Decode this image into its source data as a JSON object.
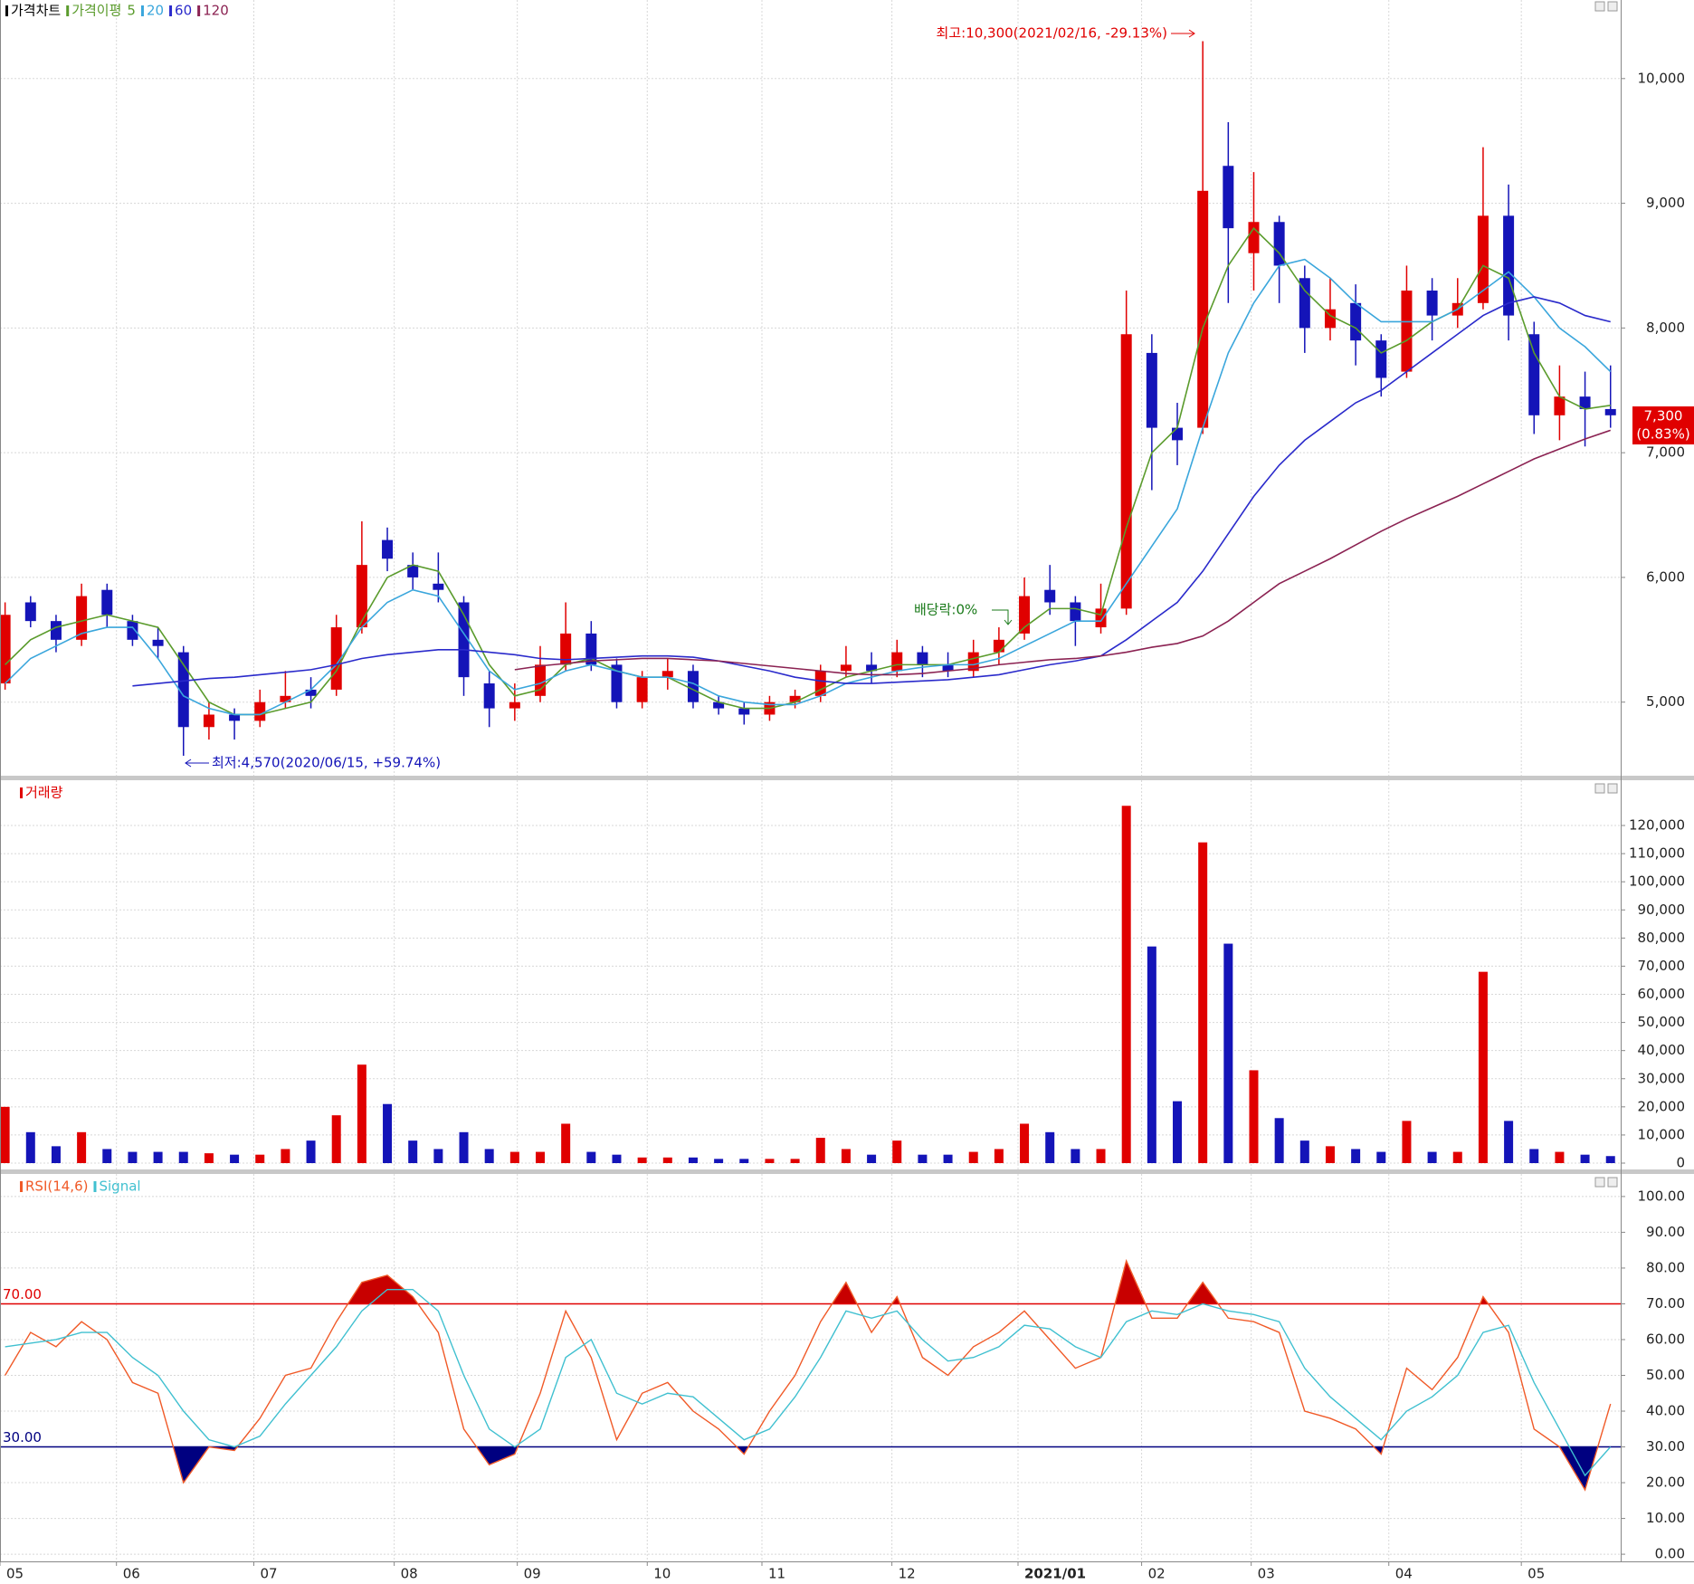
{
  "chart_data": [
    {
      "type": "candlestick",
      "title": "가격차트",
      "ma_label": "가격이평",
      "up_color": "#e00000",
      "down_color": "#1414b8",
      "open": [
        5150,
        5800,
        5650,
        5500,
        5900,
        5650,
        5500,
        5400,
        4800,
        4900,
        4850,
        5000,
        5100,
        5100,
        5600,
        6300,
        6100,
        5950,
        5800,
        5150,
        4950,
        5050,
        5300,
        5550,
        5300,
        5000,
        5200,
        5250,
        5000,
        4950,
        4900,
        5000,
        5050,
        5250,
        5300,
        5250,
        5400,
        5300,
        5250,
        5400,
        5550,
        5900,
        5800,
        5600,
        5750,
        7800,
        7200,
        7200,
        9300,
        8600,
        8850,
        8400,
        8000,
        8200,
        7900,
        7650,
        8300,
        8100,
        8200,
        8900,
        7950,
        7300,
        7450,
        7350
      ],
      "high": [
        5800,
        5850,
        5700,
        5950,
        5950,
        5700,
        5600,
        5450,
        5000,
        4950,
        5100,
        5250,
        5200,
        5700,
        6450,
        6400,
        6200,
        6200,
        5850,
        5250,
        5150,
        5450,
        5800,
        5650,
        5350,
        5250,
        5350,
        5300,
        5050,
        5000,
        5050,
        5100,
        5300,
        5450,
        5400,
        5500,
        5450,
        5400,
        5500,
        5600,
        6000,
        6100,
        5850,
        5950,
        8300,
        7950,
        7400,
        10300,
        9650,
        9250,
        8900,
        8500,
        8400,
        8350,
        7950,
        8500,
        8400,
        8400,
        9450,
        9150,
        8050,
        7700,
        7650,
        7700
      ],
      "low": [
        5100,
        5600,
        5400,
        5450,
        5600,
        5450,
        5350,
        4570,
        4700,
        4700,
        4800,
        4950,
        4950,
        5050,
        5550,
        6050,
        5900,
        5800,
        5050,
        4800,
        4850,
        5000,
        5250,
        5250,
        4950,
        4950,
        5100,
        4950,
        4900,
        4820,
        4850,
        4950,
        5000,
        5200,
        5150,
        5200,
        5200,
        5200,
        5200,
        5300,
        5500,
        5700,
        5450,
        5550,
        5700,
        6700,
        6900,
        7150,
        8200,
        8300,
        8200,
        7800,
        7900,
        7700,
        7450,
        7600,
        7900,
        8000,
        8150,
        7900,
        7150,
        7100,
        7050,
        7200
      ],
      "close": [
        5700,
        5650,
        5500,
        5850,
        5700,
        5500,
        5450,
        4800,
        4900,
        4850,
        5000,
        5050,
        5050,
        5600,
        6100,
        6150,
        6000,
        5900,
        5200,
        4950,
        5000,
        5300,
        5550,
        5300,
        5000,
        5200,
        5250,
        5000,
        4950,
        4900,
        5000,
        5050,
        5250,
        5300,
        5250,
        5400,
        5300,
        5250,
        5400,
        5500,
        5850,
        5800,
        5650,
        5750,
        7950,
        7200,
        7100,
        9100,
        8800,
        8850,
        8500,
        8000,
        8150,
        7900,
        7600,
        8300,
        8100,
        8200,
        8900,
        8100,
        7300,
        7450,
        7350,
        7300
      ],
      "series": [
        {
          "name": "5",
          "color": "#5a9b2c",
          "values": [
            5300,
            5500,
            5600,
            5650,
            5700,
            5650,
            5600,
            5300,
            5000,
            4900,
            4900,
            4950,
            5000,
            5250,
            5650,
            6000,
            6100,
            6050,
            5700,
            5300,
            5050,
            5100,
            5300,
            5350,
            5250,
            5200,
            5200,
            5100,
            5000,
            4950,
            4950,
            5000,
            5100,
            5200,
            5250,
            5300,
            5300,
            5300,
            5350,
            5400,
            5600,
            5750,
            5750,
            5700,
            6400,
            7000,
            7200,
            8000,
            8500,
            8800,
            8600,
            8300,
            8100,
            8000,
            7800,
            7900,
            8050,
            8150,
            8500,
            8400,
            7800,
            7450,
            7350,
            7380
          ]
        },
        {
          "name": "20",
          "color": "#3aa6dc",
          "values": [
            5150,
            5350,
            5450,
            5550,
            5600,
            5600,
            5350,
            5050,
            4950,
            4900,
            4900,
            5000,
            5100,
            5300,
            5600,
            5800,
            5900,
            5850,
            5550,
            5250,
            5100,
            5150,
            5250,
            5300,
            5250,
            5200,
            5200,
            5150,
            5050,
            5000,
            4980,
            4980,
            5050,
            5150,
            5200,
            5250,
            5280,
            5300,
            5300,
            5350,
            5450,
            5550,
            5650,
            5650,
            5950,
            6250,
            6550,
            7200,
            7800,
            8200,
            8500,
            8550,
            8400,
            8200,
            8050,
            8050,
            8050,
            8150,
            8300,
            8450,
            8250,
            8000,
            7850,
            7650
          ]
        },
        {
          "name": "60",
          "color": "#2a2acb",
          "values": [
            null,
            null,
            null,
            null,
            null,
            5130,
            5150,
            5170,
            5190,
            5200,
            5220,
            5240,
            5260,
            5300,
            5350,
            5380,
            5400,
            5420,
            5420,
            5400,
            5380,
            5350,
            5340,
            5350,
            5360,
            5370,
            5370,
            5360,
            5330,
            5290,
            5250,
            5200,
            5170,
            5150,
            5150,
            5160,
            5170,
            5180,
            5200,
            5220,
            5260,
            5300,
            5330,
            5370,
            5500,
            5650,
            5800,
            6050,
            6350,
            6650,
            6900,
            7100,
            7250,
            7400,
            7500,
            7650,
            7800,
            7950,
            8100,
            8200,
            8250,
            8200,
            8100,
            8050
          ]
        },
        {
          "name": "120",
          "color": "#8b2252",
          "values": [
            null,
            null,
            null,
            null,
            null,
            null,
            null,
            null,
            null,
            null,
            null,
            null,
            null,
            null,
            null,
            null,
            null,
            null,
            null,
            null,
            5260,
            5290,
            5310,
            5330,
            5340,
            5350,
            5350,
            5340,
            5330,
            5310,
            5290,
            5270,
            5250,
            5230,
            5220,
            5220,
            5230,
            5250,
            5270,
            5300,
            5320,
            5340,
            5350,
            5370,
            5400,
            5440,
            5470,
            5530,
            5650,
            5800,
            5950,
            6050,
            6150,
            6260,
            6370,
            6470,
            6560,
            6650,
            6750,
            6850,
            6950,
            7030,
            7110,
            7180
          ]
        }
      ],
      "xlim": [
        -0.2,
        63.4
      ],
      "ylim": [
        4410,
        10630
      ],
      "yticks": [
        {
          "value": 5000,
          "label": "5,000"
        },
        {
          "value": 6000,
          "label": "6,000"
        },
        {
          "value": 7000,
          "label": "7,000"
        },
        {
          "value": 8000,
          "label": "8,000"
        },
        {
          "value": 9000,
          "label": "9,000"
        },
        {
          "value": 10000,
          "label": "10,000"
        }
      ],
      "grid": true,
      "annotations": {
        "high": "최고:10,300(2021/02/16, -29.13%)",
        "low": "최저:4,570(2020/06/15, +59.74%)",
        "ex_dividend": "배당락:0%"
      },
      "last_label": "7,300",
      "last_change": "(0.83%)"
    },
    {
      "type": "bar",
      "title": "거래량",
      "values": [
        20000,
        11000,
        6000,
        11000,
        5000,
        4000,
        4000,
        4000,
        3500,
        3000,
        3000,
        5000,
        8000,
        17000,
        35000,
        21000,
        8000,
        5000,
        11000,
        5000,
        4000,
        4000,
        14000,
        4000,
        3000,
        2000,
        2000,
        2000,
        1500,
        1500,
        1500,
        1500,
        9000,
        5000,
        3000,
        8000,
        3000,
        3000,
        4000,
        5000,
        14000,
        11000,
        5000,
        5000,
        127000,
        77000,
        22000,
        114000,
        78000,
        33000,
        16000,
        8000,
        6000,
        5000,
        4000,
        15000,
        4000,
        4000,
        68000,
        15000,
        5000,
        4000,
        3000,
        2500
      ],
      "xlim": [
        -0.2,
        63.4
      ],
      "ylim": [
        -2250,
        136090
      ],
      "yticks": [
        0,
        {
          "value": 10000,
          "label": "10,000"
        },
        {
          "value": 20000,
          "label": "20,000"
        },
        {
          "value": 30000,
          "label": "30,000"
        },
        {
          "value": 40000,
          "label": "40,000"
        },
        {
          "value": 50000,
          "label": "50,000"
        },
        {
          "value": 60000,
          "label": "60,000"
        },
        {
          "value": 70000,
          "label": "70,000"
        },
        {
          "value": 80000,
          "label": "80,000"
        },
        {
          "value": 90000,
          "label": "90,000"
        },
        {
          "value": 100000,
          "label": "100,000"
        },
        {
          "value": 110000,
          "label": "110,000"
        },
        {
          "value": 120000,
          "label": "120,000"
        }
      ],
      "grid": true
    },
    {
      "type": "line",
      "series": [
        {
          "name": "RSI(14,6)",
          "color": "#f05a28",
          "values": [
            50,
            62,
            58,
            65,
            60,
            48,
            45,
            20,
            30,
            29,
            38,
            50,
            52,
            65,
            76,
            78,
            72,
            62,
            35,
            25,
            28,
            45,
            68,
            55,
            32,
            45,
            48,
            40,
            35,
            28,
            40,
            50,
            65,
            76,
            62,
            72,
            55,
            50,
            58,
            62,
            68,
            60,
            52,
            55,
            82,
            66,
            66,
            76,
            66,
            65,
            62,
            40,
            38,
            35,
            28,
            52,
            46,
            55,
            72,
            62,
            35,
            30,
            18,
            42
          ]
        },
        {
          "name": "Signal",
          "color": "#40c0d0",
          "values": [
            58,
            59,
            60,
            62,
            62,
            55,
            50,
            40,
            32,
            30,
            33,
            42,
            50,
            58,
            68,
            74,
            74,
            68,
            50,
            35,
            30,
            35,
            55,
            60,
            45,
            42,
            45,
            44,
            38,
            32,
            35,
            44,
            55,
            68,
            66,
            68,
            60,
            54,
            55,
            58,
            64,
            63,
            58,
            55,
            65,
            68,
            67,
            70,
            68,
            67,
            65,
            52,
            44,
            38,
            32,
            40,
            44,
            50,
            62,
            64,
            48,
            35,
            22,
            30
          ]
        }
      ],
      "levels": [
        {
          "value": 70,
          "label": "70.00",
          "color": "#e00000",
          "fill": "#c80000"
        },
        {
          "value": 30,
          "label": "30.00",
          "color": "#000080",
          "fill": "#000080"
        }
      ],
      "xlim": [
        -0.2,
        63.4
      ],
      "ylim": [
        -2,
        106.3
      ],
      "yticks": [
        {
          "value": 0,
          "label": "0.00"
        },
        {
          "value": 10,
          "label": "10.00"
        },
        {
          "value": 20,
          "label": "20.00"
        },
        {
          "value": 30,
          "label": "30.00"
        },
        {
          "value": 40,
          "label": "40.00"
        },
        {
          "value": 50,
          "label": "50.00"
        },
        {
          "value": 60,
          "label": "60.00"
        },
        {
          "value": 70,
          "label": "70.00"
        },
        {
          "value": 80,
          "label": "80.00"
        },
        {
          "value": 90,
          "label": "90.00"
        },
        {
          "value": 100,
          "label": "100.00"
        }
      ],
      "xticks": [
        {
          "value": -0.2,
          "label": "05"
        },
        {
          "value": 4.37,
          "label": "06"
        },
        {
          "value": 9.76,
          "label": "07"
        },
        {
          "value": 15.27,
          "label": "08"
        },
        {
          "value": 20.1,
          "label": "09"
        },
        {
          "value": 25.2,
          "label": "10"
        },
        {
          "value": 29.7,
          "label": "11"
        },
        {
          "value": 34.8,
          "label": "12"
        },
        {
          "value": 39.75,
          "label": "2021/01"
        },
        {
          "value": 44.6,
          "label": "02"
        },
        {
          "value": 48.9,
          "label": "03"
        },
        {
          "value": 54.3,
          "label": "04"
        },
        {
          "value": 59.5,
          "label": "05"
        }
      ],
      "grid": true
    }
  ]
}
